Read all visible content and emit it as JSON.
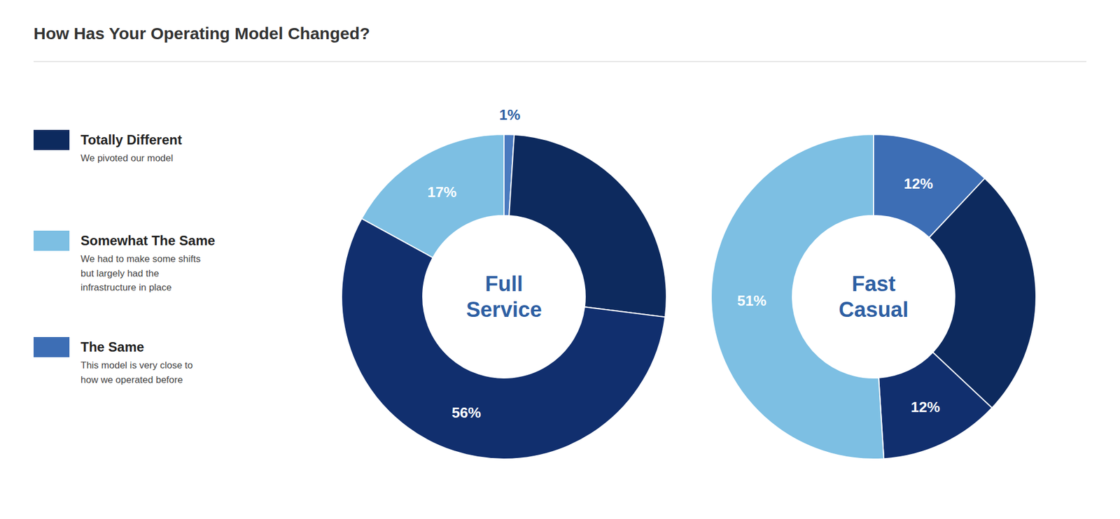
{
  "chart_data": {
    "type": "pie",
    "title": "How Has Your Operating Model Changed?",
    "legend": "left",
    "data_labels": true,
    "legend_items": [
      {
        "name": "Totally Different",
        "color": "#0d2a5e",
        "annotation": "We pivoted our model"
      },
      {
        "name": "Somewhat The Same",
        "color": "#7dbfe3",
        "annotation": "We had to make some shifts\nbut largely had the\ninfrastructure in place"
      },
      {
        "name": "The Same",
        "color": "#3d6eb5",
        "annotation": "This model is very close to\nhow we operated before"
      }
    ],
    "series": [
      {
        "name": "Full\nService",
        "values": [
          1,
          26,
          56,
          17
        ],
        "colors": [
          "#4a7abf",
          "#0d2a5e",
          "#112f6e",
          "#7dbfe3"
        ],
        "value_labels": [
          "1%",
          null,
          "56%",
          "17%"
        ]
      },
      {
        "name": "Fast\nCasual",
        "values": [
          12,
          25,
          12,
          51
        ],
        "colors": [
          "#3d6eb5",
          "#0d2a5e",
          "#112f6e",
          "#7dbfe3"
        ],
        "value_labels": [
          "12%",
          null,
          "12%",
          "51%"
        ]
      }
    ]
  }
}
